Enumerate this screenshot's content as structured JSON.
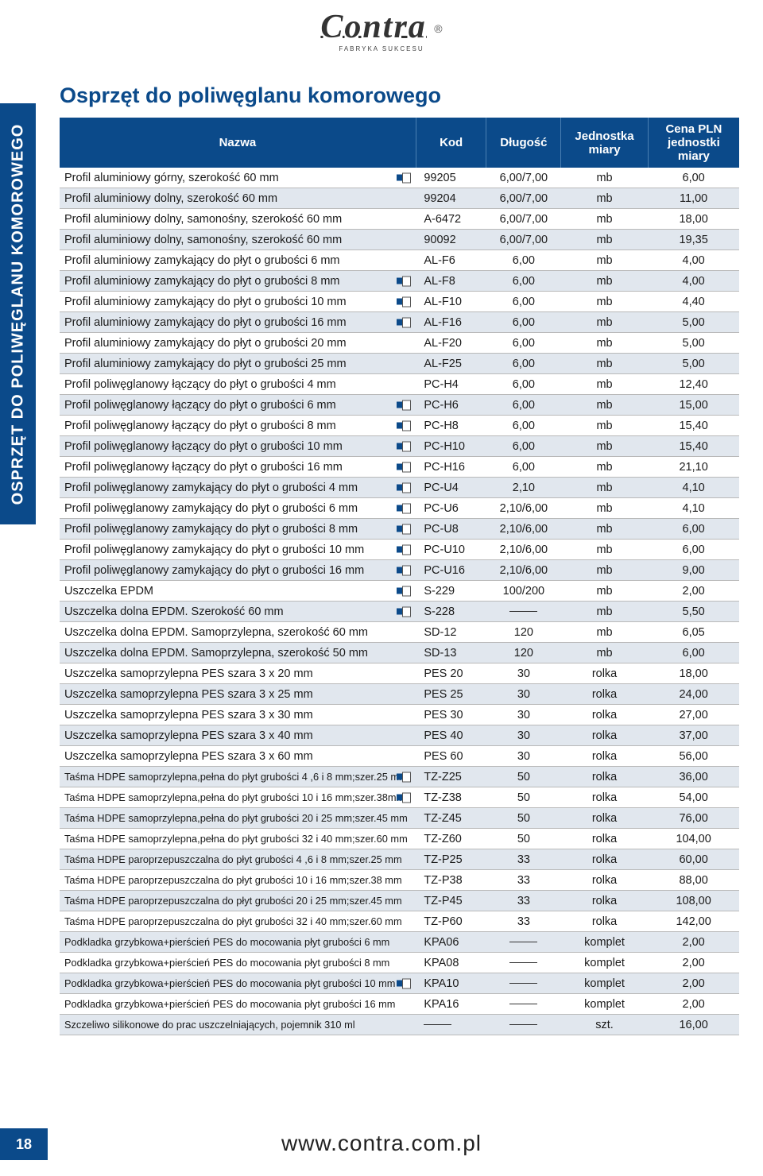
{
  "logo": {
    "text": "Contra",
    "sub": "FABRYKA SUKCESU",
    "reg": "®"
  },
  "side_tab": "OSPRZĘT DO POLIWĘGLANU KOMOROWEGO",
  "page_number": "18",
  "title": "Osprzęt do poliwęglanu komorowego",
  "footer": "www.contra.com.pl",
  "columns": {
    "nazwa": "Nazwa",
    "kod": "Kod",
    "dlugosc": "Długość",
    "jm": "Jednostka miary",
    "cena": "Cena PLN jednostki miary"
  },
  "rows": [
    {
      "shaded": false,
      "icon": true,
      "small": false,
      "n": "Profil aluminiowy górny, szerokość 60 mm",
      "k": "99205",
      "d": "6,00/7,00",
      "j": "mb",
      "c": "6,00"
    },
    {
      "shaded": true,
      "icon": false,
      "small": false,
      "n": "Profil aluminiowy dolny, szerokość 60 mm",
      "k": "99204",
      "d": "6,00/7,00",
      "j": "mb",
      "c": "11,00"
    },
    {
      "shaded": false,
      "icon": false,
      "small": false,
      "n": "Profil aluminiowy dolny, samonośny, szerokość 60 mm",
      "k": "A-6472",
      "d": "6,00/7,00",
      "j": "mb",
      "c": "18,00"
    },
    {
      "shaded": true,
      "icon": false,
      "small": false,
      "n": "Profil aluminiowy dolny, samonośny, szerokość 60 mm",
      "k": "90092",
      "d": "6,00/7,00",
      "j": "mb",
      "c": "19,35"
    },
    {
      "shaded": false,
      "icon": false,
      "small": false,
      "n": "Profil aluminiowy zamykający do płyt o grubości 6 mm",
      "k": "AL-F6",
      "d": "6,00",
      "j": "mb",
      "c": "4,00"
    },
    {
      "shaded": true,
      "icon": true,
      "small": false,
      "n": "Profil aluminiowy zamykający do płyt o grubości 8 mm",
      "k": "AL-F8",
      "d": "6,00",
      "j": "mb",
      "c": "4,00"
    },
    {
      "shaded": false,
      "icon": true,
      "small": false,
      "n": "Profil aluminiowy zamykający do płyt o grubości 10 mm",
      "k": "AL-F10",
      "d": "6,00",
      "j": "mb",
      "c": "4,40"
    },
    {
      "shaded": true,
      "icon": true,
      "small": false,
      "n": "Profil aluminiowy zamykający do płyt o grubości 16 mm",
      "k": "AL-F16",
      "d": "6,00",
      "j": "mb",
      "c": "5,00"
    },
    {
      "shaded": false,
      "icon": false,
      "small": false,
      "n": "Profil aluminiowy zamykający do płyt o grubości 20 mm",
      "k": "AL-F20",
      "d": "6,00",
      "j": "mb",
      "c": "5,00"
    },
    {
      "shaded": true,
      "icon": false,
      "small": false,
      "n": "Profil aluminiowy zamykający do płyt o grubości 25 mm",
      "k": "AL-F25",
      "d": "6,00",
      "j": "mb",
      "c": "5,00"
    },
    {
      "shaded": false,
      "icon": false,
      "small": false,
      "n": "Profil poliwęglanowy łączący do płyt o grubości 4 mm",
      "k": "PC-H4",
      "d": "6,00",
      "j": "mb",
      "c": "12,40"
    },
    {
      "shaded": true,
      "icon": true,
      "small": false,
      "n": "Profil poliwęglanowy łączący do płyt o grubości 6 mm",
      "k": "PC-H6",
      "d": "6,00",
      "j": "mb",
      "c": "15,00"
    },
    {
      "shaded": false,
      "icon": true,
      "small": false,
      "n": "Profil poliwęglanowy łączący do płyt o grubości 8 mm",
      "k": "PC-H8",
      "d": "6,00",
      "j": "mb",
      "c": "15,40"
    },
    {
      "shaded": true,
      "icon": true,
      "small": false,
      "n": "Profil poliwęglanowy łączący do płyt o grubości 10 mm",
      "k": "PC-H10",
      "d": "6,00",
      "j": "mb",
      "c": "15,40"
    },
    {
      "shaded": false,
      "icon": true,
      "small": false,
      "n": "Profil poliwęglanowy łączący do płyt o grubości 16 mm",
      "k": "PC-H16",
      "d": "6,00",
      "j": "mb",
      "c": "21,10"
    },
    {
      "shaded": true,
      "icon": true,
      "small": false,
      "n": "Profil poliwęglanowy zamykający do płyt o grubości 4 mm",
      "k": "PC-U4",
      "d": "2,10",
      "j": "mb",
      "c": "4,10"
    },
    {
      "shaded": false,
      "icon": true,
      "small": false,
      "n": "Profil poliwęglanowy zamykający do płyt o grubości 6 mm",
      "k": "PC-U6",
      "d": "2,10/6,00",
      "j": "mb",
      "c": "4,10"
    },
    {
      "shaded": true,
      "icon": true,
      "small": false,
      "n": "Profil poliwęglanowy zamykający do płyt o grubości 8 mm",
      "k": "PC-U8",
      "d": "2,10/6,00",
      "j": "mb",
      "c": "6,00"
    },
    {
      "shaded": false,
      "icon": true,
      "small": false,
      "n": "Profil poliwęglanowy zamykający do płyt o grubości 10 mm",
      "k": "PC-U10",
      "d": "2,10/6,00",
      "j": "mb",
      "c": "6,00"
    },
    {
      "shaded": true,
      "icon": true,
      "small": false,
      "n": "Profil poliwęglanowy zamykający do płyt o grubości 16 mm",
      "k": "PC-U16",
      "d": "2,10/6,00",
      "j": "mb",
      "c": "9,00"
    },
    {
      "shaded": false,
      "icon": true,
      "small": false,
      "n": "Uszczelka EPDM",
      "k": "S-229",
      "d": "100/200",
      "j": "mb",
      "c": "2,00"
    },
    {
      "shaded": true,
      "icon": true,
      "small": false,
      "n": "Uszczelka dolna EPDM. Szerokość 60 mm",
      "k": "S-228",
      "d": "—",
      "j": "mb",
      "c": "5,50"
    },
    {
      "shaded": false,
      "icon": false,
      "small": false,
      "n": "Uszczelka dolna EPDM. Samoprzylepna, szerokość 60 mm",
      "k": "SD-12",
      "d": "120",
      "j": "mb",
      "c": "6,05"
    },
    {
      "shaded": true,
      "icon": false,
      "small": false,
      "n": "Uszczelka dolna EPDM. Samoprzylepna, szerokość 50 mm",
      "k": "SD-13",
      "d": "120",
      "j": "mb",
      "c": "6,00"
    },
    {
      "shaded": false,
      "icon": false,
      "small": false,
      "n": "Uszczelka samoprzylepna PES szara 3 x 20 mm",
      "k": "PES 20",
      "d": "30",
      "j": "rolka",
      "c": "18,00"
    },
    {
      "shaded": true,
      "icon": false,
      "small": false,
      "n": "Uszczelka samoprzylepna PES szara 3 x 25 mm",
      "k": "PES 25",
      "d": "30",
      "j": "rolka",
      "c": "24,00"
    },
    {
      "shaded": false,
      "icon": false,
      "small": false,
      "n": "Uszczelka samoprzylepna PES szara 3 x 30 mm",
      "k": "PES 30",
      "d": "30",
      "j": "rolka",
      "c": "27,00"
    },
    {
      "shaded": true,
      "icon": false,
      "small": false,
      "n": "Uszczelka samoprzylepna PES szara 3 x 40 mm",
      "k": "PES 40",
      "d": "30",
      "j": "rolka",
      "c": "37,00"
    },
    {
      "shaded": false,
      "icon": false,
      "small": false,
      "n": "Uszczelka samoprzylepna PES szara 3 x 60 mm",
      "k": "PES 60",
      "d": "30",
      "j": "rolka",
      "c": "56,00"
    },
    {
      "shaded": true,
      "icon": true,
      "small": true,
      "n": "Taśma HDPE samoprzylepna,pełna do płyt grubości 4 ,6 i 8 mm;szer.25 mm",
      "k": "TZ-Z25",
      "d": "50",
      "j": "rolka",
      "c": "36,00"
    },
    {
      "shaded": false,
      "icon": true,
      "small": true,
      "n": "Taśma HDPE samoprzylepna,pełna do płyt grubości 10 i 16 mm;szer.38mm",
      "k": "TZ-Z38",
      "d": "50",
      "j": "rolka",
      "c": "54,00"
    },
    {
      "shaded": true,
      "icon": false,
      "small": true,
      "n": "Taśma HDPE samoprzylepna,pełna do płyt grubości 20 i 25 mm;szer.45 mm",
      "k": "TZ-Z45",
      "d": "50",
      "j": "rolka",
      "c": "76,00"
    },
    {
      "shaded": false,
      "icon": false,
      "small": true,
      "n": "Taśma HDPE samoprzylepna,pełna do płyt grubości 32 i 40 mm;szer.60 mm",
      "k": "TZ-Z60",
      "d": "50",
      "j": "rolka",
      "c": "104,00"
    },
    {
      "shaded": true,
      "icon": false,
      "small": true,
      "n": "Taśma HDPE paroprzepuszczalna do płyt grubości 4 ,6 i 8 mm;szer.25 mm",
      "k": "TZ-P25",
      "d": "33",
      "j": "rolka",
      "c": "60,00"
    },
    {
      "shaded": false,
      "icon": false,
      "small": true,
      "n": "Taśma HDPE paroprzepuszczalna do płyt grubości 10 i 16 mm;szer.38 mm",
      "k": "TZ-P38",
      "d": "33",
      "j": "rolka",
      "c": "88,00"
    },
    {
      "shaded": true,
      "icon": false,
      "small": true,
      "n": "Taśma HDPE paroprzepuszczalna do płyt grubości 20 i 25 mm;szer.45 mm",
      "k": "TZ-P45",
      "d": "33",
      "j": "rolka",
      "c": "108,00"
    },
    {
      "shaded": false,
      "icon": false,
      "small": true,
      "n": "Taśma HDPE paroprzepuszczalna do płyt grubości 32 i 40 mm;szer.60 mm",
      "k": "TZ-P60",
      "d": "33",
      "j": "rolka",
      "c": "142,00"
    },
    {
      "shaded": true,
      "icon": false,
      "small": true,
      "n": "Podkladka grzybkowa+pierścień PES do mocowania płyt grubości 6 mm",
      "k": "KPA06",
      "d": "—",
      "j": "komplet",
      "c": "2,00"
    },
    {
      "shaded": false,
      "icon": false,
      "small": true,
      "n": "Podkladka grzybkowa+pierścień PES do mocowania płyt grubości 8 mm",
      "k": "KPA08",
      "d": "—",
      "j": "komplet",
      "c": "2,00"
    },
    {
      "shaded": true,
      "icon": true,
      "small": true,
      "n": "Podkladka grzybkowa+pierścień PES do mocowania płyt grubości 10 mm",
      "k": "KPA10",
      "d": "—",
      "j": "komplet",
      "c": "2,00"
    },
    {
      "shaded": false,
      "icon": false,
      "small": true,
      "n": "Podkladka grzybkowa+pierścień PES do mocowania płyt grubości 16 mm",
      "k": "KPA16",
      "d": "—",
      "j": "komplet",
      "c": "2,00"
    },
    {
      "shaded": true,
      "icon": false,
      "small": true,
      "n": "Szczeliwo silikonowe do prac uszczelniających, pojemnik 310 ml",
      "k": "—",
      "d": "—",
      "j": "szt.",
      "c": "16,00"
    }
  ]
}
